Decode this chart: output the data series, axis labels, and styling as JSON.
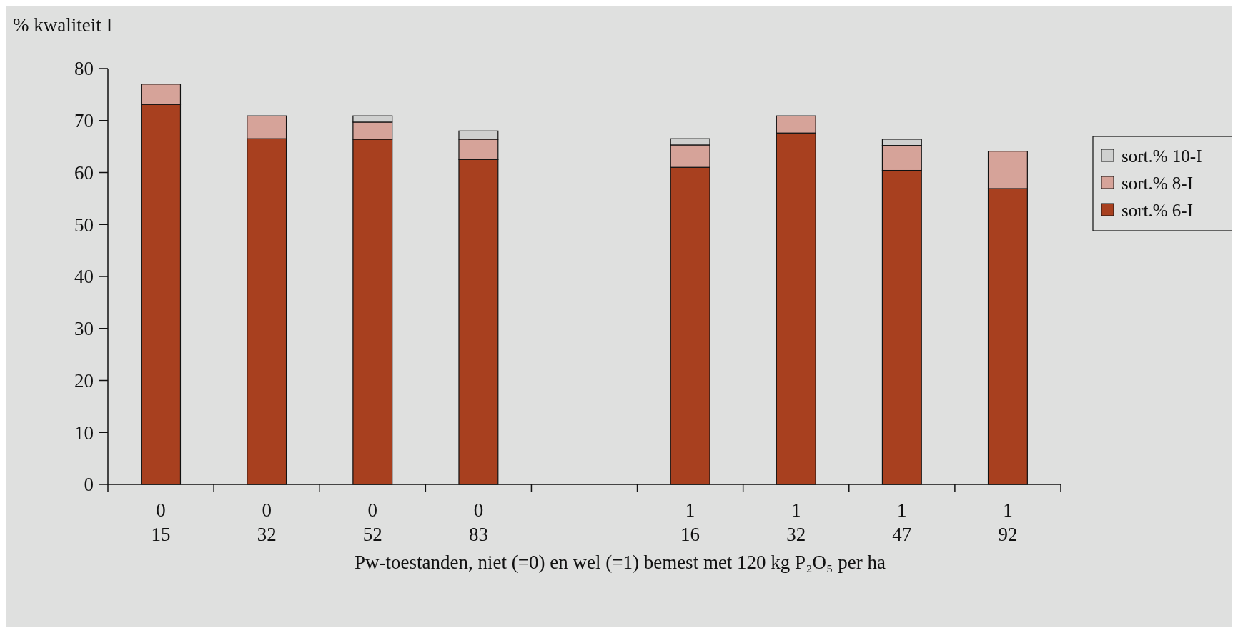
{
  "chart_data": {
    "type": "bar",
    "stacked": true,
    "ylabel": "% kwaliteit I",
    "xlabel": "Pw-toestanden, niet (=0) en wel (=1) bemest met 120 kg P₂O₅ per ha",
    "categories": [
      "0\n15",
      "0\n32",
      "0\n52",
      "0\n83",
      null,
      "1\n16",
      "1\n32",
      "1\n47",
      "1\n92"
    ],
    "series": [
      {
        "name": "sort.% 6-I",
        "color": "#a8401f",
        "values": [
          73.1,
          66.5,
          66.4,
          62.5,
          null,
          61.0,
          67.6,
          60.4,
          56.9
        ]
      },
      {
        "name": "sort.% 8-I",
        "color": "#d6a399",
        "values": [
          3.9,
          4.4,
          3.3,
          3.9,
          null,
          4.3,
          3.3,
          4.8,
          7.2
        ]
      },
      {
        "name": "sort.% 10-I",
        "color": "#cfd0cf",
        "values": [
          null,
          null,
          1.2,
          1.6,
          null,
          1.2,
          null,
          1.2,
          null
        ]
      }
    ],
    "ylim": [
      0,
      80
    ],
    "yticks": [
      0,
      10,
      20,
      30,
      40,
      50,
      60,
      70,
      80
    ],
    "grid": false,
    "legend": "right"
  }
}
